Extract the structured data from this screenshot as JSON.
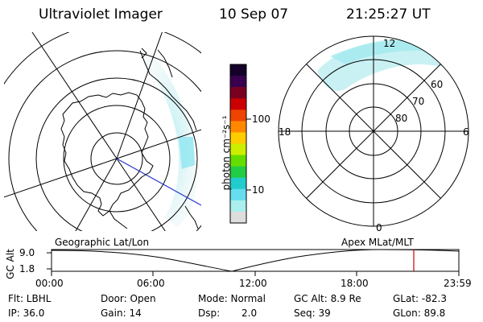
{
  "header": {
    "instrument": "Ultraviolet Imager",
    "date": "10 Sep 07",
    "time": "21:25:27 UT"
  },
  "colorbar": {
    "unit_label": "photon cm⁻²s⁻¹",
    "ticks": [
      "100",
      "10"
    ],
    "colors": [
      "#140028",
      "#3a0050",
      "#7a0022",
      "#cc0000",
      "#ee4400",
      "#ff8800",
      "#ffcc00",
      "#ccee00",
      "#66dd00",
      "#22cc44",
      "#22cccc",
      "#66ddee",
      "#aaeeee",
      "#dddddd"
    ]
  },
  "right_map": {
    "mlt_labels": {
      "top": "12",
      "left": "18",
      "right": "6",
      "bottom": "0"
    },
    "lat_labels": [
      "60",
      "70",
      "80"
    ]
  },
  "plot": {
    "left_label": "Geographic Lat/Lon",
    "right_label": "Apex MLat/MLT",
    "y_axis_label": "GC Alt",
    "y_ticks": [
      "9.0",
      "1.8"
    ],
    "x_ticks": [
      "00:00",
      "06:00",
      "12:00",
      "18:00",
      "23:59"
    ]
  },
  "status": {
    "flt": "Flt: LBHL",
    "door": "Door: Open",
    "mode": "Mode: Normal",
    "gc_alt": "GC Alt: 8.9 Re",
    "glat": "GLat: -82.3",
    "ip": "IP: 36.0",
    "gain": "Gain: 14",
    "dsp_label": "Dsp:",
    "dsp_value": "2.0",
    "seq": "Seq: 39",
    "glon": "GLon:  89.8"
  }
}
